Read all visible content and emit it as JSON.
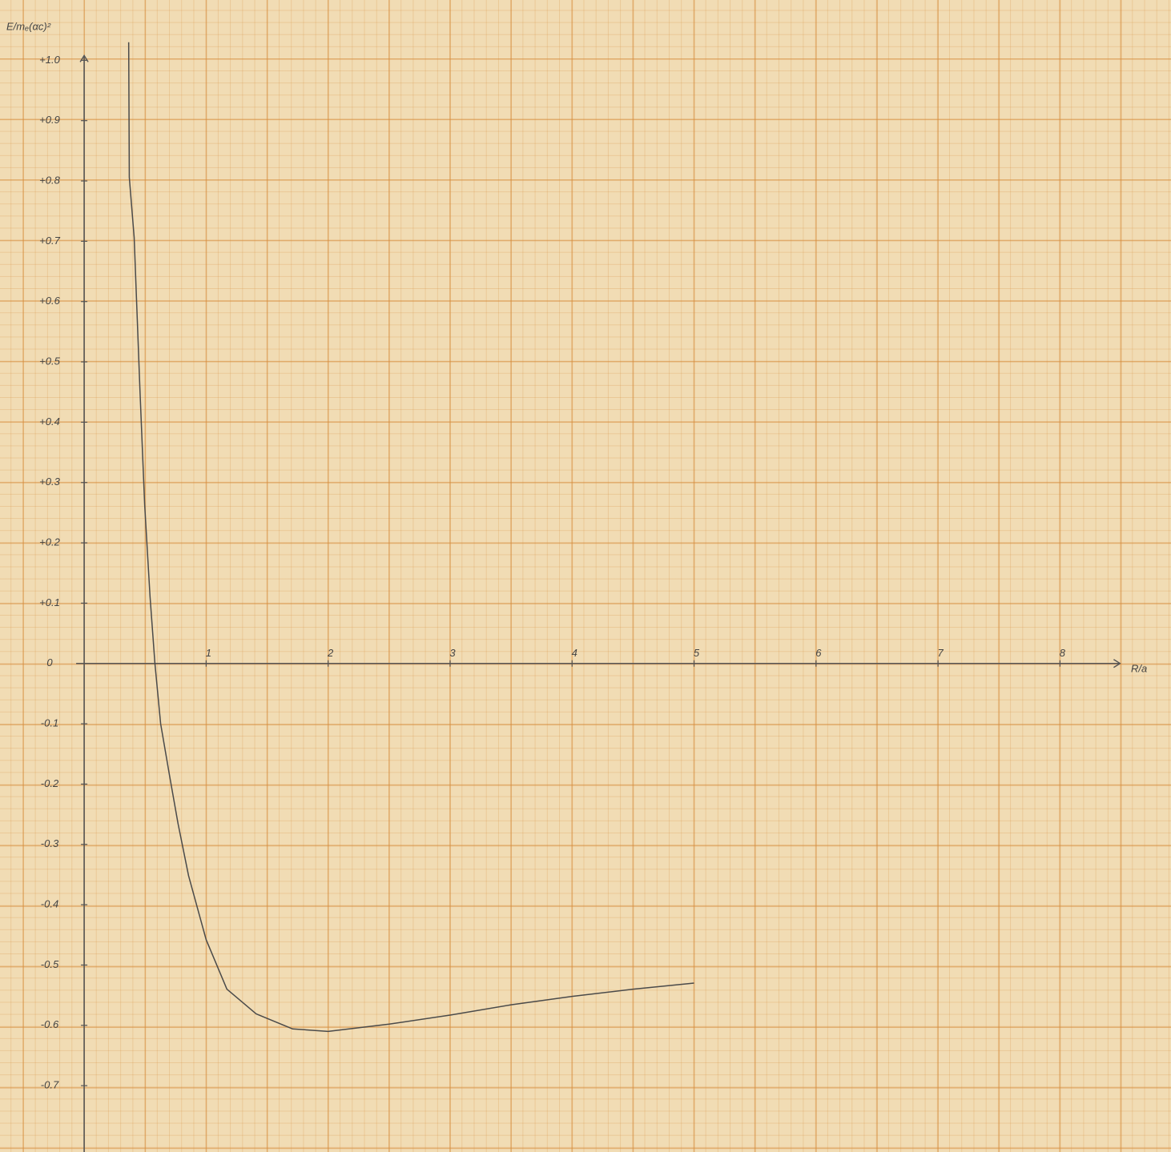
{
  "chart_data": {
    "type": "line",
    "y_label": "E/mₑ(αc)²",
    "x_label": "R/a",
    "xlim": [
      -0.69,
      8.91
    ],
    "ylim": [
      -0.81,
      1.1
    ],
    "xticks": [
      1,
      2,
      3,
      4,
      5,
      6,
      7,
      8
    ],
    "yticks": [
      {
        "value": 1.0,
        "label": "+1.0"
      },
      {
        "value": 0.9,
        "label": "+0.9"
      },
      {
        "value": 0.8,
        "label": "+0.8"
      },
      {
        "value": 0.7,
        "label": "+0.7"
      },
      {
        "value": 0.6,
        "label": "+0.6"
      },
      {
        "value": 0.5,
        "label": "+0.5"
      },
      {
        "value": 0.4,
        "label": "+0.4"
      },
      {
        "value": 0.3,
        "label": "+0.3"
      },
      {
        "value": 0.2,
        "label": "+0.2"
      },
      {
        "value": 0.1,
        "label": "+0.1"
      },
      0,
      -0.1,
      -0.2,
      -0.3,
      -0.4,
      -0.5,
      -0.6,
      -0.7
    ],
    "series": [
      {
        "color": "#4a4a4a",
        "x": [
          0.365,
          0.37,
          0.41,
          0.457,
          0.496,
          0.54,
          0.58,
          0.627,
          0.7,
          0.77,
          0.856,
          1.0,
          1.17,
          1.41,
          1.71,
          2.0,
          2.5,
          3.0,
          3.5,
          4.0,
          4.5,
          5.0
        ],
        "values": [
          1.03,
          0.806,
          0.706,
          0.455,
          0.263,
          0.111,
          0,
          -0.1,
          -0.186,
          -0.266,
          -0.352,
          -0.458,
          -0.54,
          -0.581,
          -0.606,
          -0.61,
          -0.598,
          -0.583,
          -0.566,
          -0.552,
          -0.54,
          -0.53
        ]
      }
    ]
  }
}
